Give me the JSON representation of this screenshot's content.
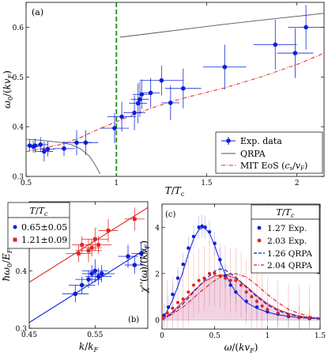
{
  "chart_data": [
    {
      "id": "a",
      "type": "scatter",
      "panel_label": "(a)",
      "xlabel": "T/T_c",
      "ylabel": "ω_0/(kv_F)",
      "xlim": [
        0.5,
        2.15
      ],
      "ylim": [
        0.3,
        0.65
      ],
      "xticks": [
        0.5,
        1,
        1.5,
        2
      ],
      "xtick_labels": [
        "0.5",
        "1",
        "1.5",
        "2"
      ],
      "yticks": [
        0.3,
        0.4,
        0.5,
        0.6
      ],
      "ytick_labels": [
        "0.3",
        "0.4",
        "0.5",
        "0.6"
      ],
      "vline": {
        "x": 1.0,
        "color": "#1a8f1a",
        "style": "dashed"
      },
      "legend": [
        "Exp. data",
        "QRPA",
        "MIT EoS (c_s/v_F)"
      ],
      "legend_position": "bottom-right",
      "series": [
        {
          "name": "Exp. data",
          "kind": "errorbar",
          "color": "#0b1fd6",
          "x": [
            0.52,
            0.54,
            0.55,
            0.58,
            0.6,
            0.62,
            0.71,
            0.78,
            0.83,
            0.99,
            1.03,
            1.1,
            1.12,
            1.13,
            1.14,
            1.19,
            1.25,
            1.3,
            1.37,
            1.6,
            1.88,
            1.99,
            2.05
          ],
          "y": [
            0.362,
            0.36,
            0.362,
            0.364,
            0.35,
            0.355,
            0.356,
            0.368,
            0.368,
            0.397,
            0.42,
            0.428,
            0.447,
            0.455,
            0.465,
            0.468,
            0.493,
            0.448,
            0.477,
            0.52,
            0.565,
            0.548,
            0.6
          ],
          "xerr": [
            0.04,
            0.03,
            0.04,
            0.04,
            0.05,
            0.04,
            0.06,
            0.08,
            0.07,
            0.08,
            0.08,
            0.06,
            0.05,
            0.05,
            0.05,
            0.05,
            0.12,
            0.05,
            0.1,
            0.12,
            0.12,
            0.1,
            0.1
          ],
          "yerr": [
            0.012,
            0.012,
            0.014,
            0.015,
            0.02,
            0.015,
            0.015,
            0.025,
            0.025,
            0.03,
            0.03,
            0.035,
            0.04,
            0.035,
            0.03,
            0.03,
            0.03,
            0.035,
            0.04,
            0.045,
            0.05,
            0.05,
            0.045
          ]
        },
        {
          "name": "QRPA",
          "kind": "line",
          "color": "#555555",
          "segments": [
            {
              "x": [
                0.5,
                0.6,
                0.7,
                0.75,
                0.8,
                0.85,
                0.88,
                0.91
              ],
              "y": [
                0.375,
                0.372,
                0.368,
                0.364,
                0.356,
                0.341,
                0.325,
                0.305
              ]
            },
            {
              "x": [
                1.02,
                1.2,
                1.4,
                1.6,
                1.8,
                2.0,
                2.15
              ],
              "y": [
                0.58,
                0.588,
                0.597,
                0.606,
                0.614,
                0.622,
                0.628
              ]
            }
          ]
        },
        {
          "name": "MIT EoS (c_s/v_F)",
          "kind": "line",
          "color": "#e0231e",
          "style": "dashdot",
          "x": [
            0.5,
            0.6,
            0.7,
            0.8,
            0.9,
            1.0,
            1.1,
            1.2,
            1.3,
            1.4,
            1.6,
            1.8,
            2.0,
            2.15
          ],
          "y": [
            0.35,
            0.357,
            0.365,
            0.378,
            0.395,
            0.41,
            0.425,
            0.438,
            0.45,
            0.46,
            0.478,
            0.5,
            0.525,
            0.548
          ]
        }
      ]
    },
    {
      "id": "b",
      "type": "scatter",
      "panel_label": "(b)",
      "xlabel": "k/k_F",
      "ylabel": "ħω_0/E_F",
      "xlim": [
        0.45,
        0.63
      ],
      "ylim": [
        0.3,
        0.52
      ],
      "xticks": [
        0.45,
        0.55
      ],
      "xtick_labels": [
        "0.45",
        "0.55"
      ],
      "yticks": [
        0.3,
        0.4
      ],
      "ytick_labels": [
        "0.3",
        "0.4"
      ],
      "legend_title": "T/T_c",
      "legend": [
        "0.65±0.05",
        "1.21±0.09"
      ],
      "legend_position": "top-left",
      "series": [
        {
          "name": "0.65±0.05",
          "color": "#0b1fd6",
          "x": [
            0.52,
            0.53,
            0.54,
            0.545,
            0.55,
            0.555,
            0.56,
            0.6,
            0.61,
            0.62
          ],
          "y": [
            0.36,
            0.375,
            0.385,
            0.395,
            0.4,
            0.39,
            0.395,
            0.425,
            0.41,
            0.43
          ],
          "xerr": [
            0.02,
            0.02,
            0.02,
            0.015,
            0.02,
            0.02,
            0.02,
            0.015,
            0.015,
            0.015
          ],
          "yerr": [
            0.015,
            0.015,
            0.015,
            0.015,
            0.02,
            0.015,
            0.015,
            0.02,
            0.015,
            0.02
          ],
          "fit": {
            "x": [
              0.45,
              0.63
            ],
            "y": [
              0.31,
              0.44
            ]
          }
        },
        {
          "name": "1.21±0.09",
          "color": "#e0231e",
          "x": [
            0.525,
            0.53,
            0.54,
            0.545,
            0.55,
            0.555,
            0.57,
            0.61
          ],
          "y": [
            0.43,
            0.445,
            0.435,
            0.44,
            0.455,
            0.445,
            0.47,
            0.49
          ],
          "xerr": [
            0.02,
            0.015,
            0.02,
            0.015,
            0.02,
            0.02,
            0.015,
            0.015
          ],
          "yerr": [
            0.015,
            0.015,
            0.02,
            0.015,
            0.02,
            0.015,
            0.02,
            0.02
          ],
          "fit": {
            "x": [
              0.45,
              0.63
            ],
            "y": [
              0.38,
              0.51
            ]
          }
        }
      ]
    },
    {
      "id": "c",
      "type": "line",
      "panel_label": "(c)",
      "xlabel": "ω/(kv_F)",
      "ylabel": "χ''(ω)/(kv_F)",
      "xlim": [
        0,
        1.5
      ],
      "ylim": [
        -0.4,
        5.0
      ],
      "xticks": [
        0,
        0.5,
        1,
        1.5
      ],
      "xtick_labels": [
        "0",
        "0.5",
        "1",
        "1.5"
      ],
      "yticks": [
        0,
        2,
        4
      ],
      "ytick_labels": [
        "0",
        "2",
        "4"
      ],
      "legend_title": "T/T_c",
      "legend": [
        "1.27 Exp.",
        "2.03 Exp.",
        "1.26 QRPA",
        "2.04 QRPA"
      ],
      "legend_position": "top-right",
      "series": [
        {
          "name": "1.27 Exp.",
          "kind": "points",
          "color": "#0b1fd6",
          "x": [
            0.02,
            0.06,
            0.1,
            0.15,
            0.2,
            0.25,
            0.3,
            0.35,
            0.38,
            0.41,
            0.45,
            0.5,
            0.55,
            0.6,
            0.65,
            0.7,
            0.8,
            0.9,
            1.0,
            1.1,
            1.2,
            1.3,
            1.4
          ],
          "y": [
            0.2,
            0.55,
            1.1,
            1.8,
            2.4,
            3.1,
            3.6,
            4.0,
            4.05,
            4.0,
            3.8,
            3.3,
            2.6,
            1.9,
            1.5,
            1.2,
            0.8,
            0.55,
            0.35,
            0.25,
            0.15,
            0.1,
            0.05
          ]
        },
        {
          "name": "2.03 Exp.",
          "kind": "points",
          "color": "#e0231e",
          "x": [
            0.0,
            0.05,
            0.1,
            0.15,
            0.2,
            0.25,
            0.3,
            0.35,
            0.4,
            0.45,
            0.5,
            0.55,
            0.6,
            0.65,
            0.7,
            0.75,
            0.8,
            0.85,
            0.9,
            0.95,
            1.0,
            1.1,
            1.2,
            1.3,
            1.4
          ],
          "y": [
            0.1,
            0.3,
            0.5,
            0.75,
            0.9,
            1.2,
            1.5,
            1.7,
            1.8,
            2.0,
            2.0,
            1.9,
            1.8,
            1.7,
            1.7,
            1.5,
            1.2,
            1.0,
            0.8,
            0.6,
            0.45,
            0.3,
            0.2,
            0.1,
            0.05
          ]
        },
        {
          "name": "1.26 QRPA",
          "kind": "line",
          "color": "#0b1fd6",
          "style": "dashed",
          "x": [
            0.0,
            0.1,
            0.2,
            0.3,
            0.4,
            0.5,
            0.55,
            0.6,
            0.7,
            0.8,
            0.9,
            1.0,
            1.1,
            1.2,
            1.3,
            1.4,
            1.5
          ],
          "y": [
            0.0,
            0.3,
            0.7,
            1.2,
            1.7,
            2.1,
            2.2,
            2.15,
            1.85,
            1.4,
            1.0,
            0.65,
            0.4,
            0.25,
            0.15,
            0.08,
            0.04
          ]
        },
        {
          "name": "2.04 QRPA",
          "kind": "line",
          "color": "#e0231e",
          "style": "dashdot",
          "x": [
            0.0,
            0.1,
            0.2,
            0.3,
            0.4,
            0.5,
            0.6,
            0.7,
            0.8,
            0.9,
            1.0,
            1.1,
            1.2,
            1.3,
            1.4,
            1.5
          ],
          "y": [
            0.0,
            0.25,
            0.55,
            0.95,
            1.35,
            1.7,
            1.95,
            2.0,
            1.85,
            1.5,
            1.1,
            0.75,
            0.45,
            0.28,
            0.15,
            0.08
          ]
        },
        {
          "name": "fit-blue",
          "kind": "fit",
          "color": "#0b1fd6",
          "x": [
            0.0,
            0.05,
            0.1,
            0.15,
            0.2,
            0.25,
            0.3,
            0.35,
            0.4,
            0.45,
            0.5,
            0.55,
            0.6,
            0.7,
            0.8,
            0.9,
            1.0,
            1.1,
            1.2,
            1.3,
            1.4,
            1.5
          ],
          "y": [
            0.0,
            0.4,
            0.85,
            1.45,
            2.1,
            2.85,
            3.5,
            3.9,
            4.0,
            3.75,
            3.2,
            2.55,
            1.95,
            1.2,
            0.75,
            0.5,
            0.33,
            0.22,
            0.15,
            0.1,
            0.07,
            0.05
          ]
        },
        {
          "name": "fit-red",
          "kind": "fit",
          "color": "#e0231e",
          "x": [
            0.0,
            0.1,
            0.2,
            0.3,
            0.4,
            0.5,
            0.6,
            0.7,
            0.8,
            0.9,
            1.0,
            1.1,
            1.2,
            1.3,
            1.4,
            1.5
          ],
          "y": [
            0.0,
            0.35,
            0.8,
            1.25,
            1.65,
            1.9,
            1.95,
            1.8,
            1.45,
            1.05,
            0.7,
            0.45,
            0.28,
            0.17,
            0.1,
            0.06
          ]
        }
      ]
    }
  ]
}
